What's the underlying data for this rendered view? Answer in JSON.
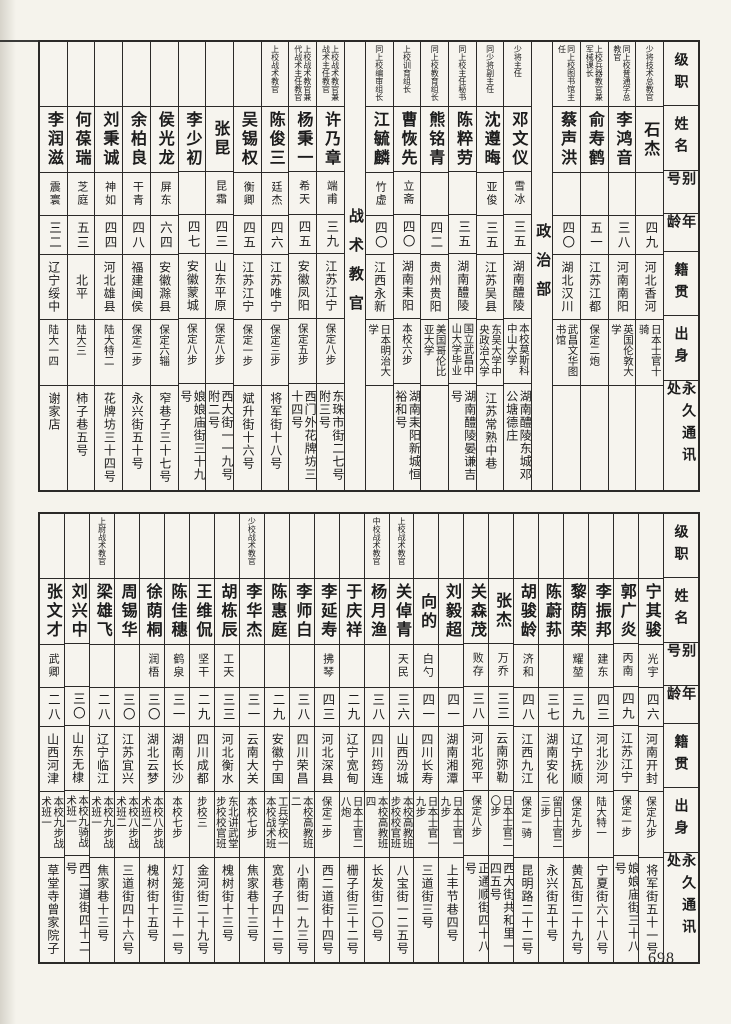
{
  "page": {
    "number": "698"
  },
  "field_labels": [
    "级职",
    "姓名",
    "别号",
    "年龄",
    "籍贯",
    "出身",
    "永久通讯处"
  ],
  "tables": [
    {
      "name": "top",
      "columns": [
        {
          "type": "header"
        },
        {
          "type": "person",
          "rank": "少将技术总教官",
          "name": "石杰",
          "alias": "",
          "age": "四九",
          "native": "河北香河",
          "background": "日本士官十骑",
          "address": ""
        },
        {
          "type": "person",
          "rank": "同上校普通学总教官",
          "name": "李鸿音",
          "alias": "",
          "age": "三八",
          "native": "河南南阳",
          "background": "英国伦敦大学",
          "address": ""
        },
        {
          "type": "person",
          "rank": "上校兵器教官兼军械课长",
          "name": "俞寿鹤",
          "alias": "",
          "age": "五一",
          "native": "江苏江都",
          "background": "保定二炮",
          "address": ""
        },
        {
          "type": "person",
          "rank": "同上校图书馆主任",
          "name": "蔡声洪",
          "alias": "",
          "age": "四〇",
          "native": "湖北汉川",
          "background": "武昌文华图书馆",
          "address": ""
        },
        {
          "type": "group",
          "title": "政治部"
        },
        {
          "type": "person",
          "rank": "少将主任",
          "name": "邓文仪",
          "alias": "雪冰",
          "age": "三五",
          "native": "湖南醴陵",
          "background": "本校莫斯科中山大学",
          "address": "湖南醴陵东城邓公塘德庄"
        },
        {
          "type": "person",
          "rank": "同少将副主任",
          "name": "沈遵晦",
          "alias": "亚俊",
          "age": "三五",
          "native": "江苏吴县",
          "background": "东吴大学中央政治大学",
          "address": "江苏常熟中巷"
        },
        {
          "type": "person",
          "rank": "同上校主任秘书",
          "name": "陈粹劳",
          "alias": "",
          "age": "三五",
          "native": "湖南醴陵",
          "background": "国立武昌中山大学毕业",
          "address": "湖南醴陵晏谦吉号"
        },
        {
          "type": "person",
          "rank": "同上校教育组长",
          "name": "熊铭青",
          "alias": "",
          "age": "四二",
          "native": "贵州贵阳",
          "background": "美国哥伦比亚大学",
          "address": ""
        },
        {
          "type": "person",
          "rank": "上校训育组长",
          "name": "曹恢先",
          "alias": "立斋",
          "age": "四〇",
          "native": "湖南耒阳",
          "background": "本校六步",
          "address": "湖南耒阳新城恒裕和号"
        },
        {
          "type": "person",
          "rank": "同上校编审组长",
          "name": "江毓麟",
          "alias": "竹虚",
          "age": "四〇",
          "native": "江西永新",
          "background": "日本明治大学",
          "address": ""
        },
        {
          "type": "group",
          "title": "战术教官"
        },
        {
          "type": "person",
          "rank": "上校战术教官兼战术主任教官",
          "name": "许乃章",
          "alias": "端甫",
          "age": "三九",
          "native": "江苏江宁",
          "background": "保定八步",
          "address": "东珠市街二七号附三号"
        },
        {
          "type": "person",
          "rank": "上校战术教官兼代战术主任教官",
          "name": "杨秉一",
          "alias": "希天",
          "age": "四五",
          "native": "安徽凤阳",
          "background": "保定五步",
          "address": "西门外花牌坊三十四号"
        },
        {
          "type": "person",
          "rank": "上校战术教官",
          "name": "陈俊三",
          "alias": "廷杰",
          "age": "四六",
          "native": "江苏唯宁",
          "background": "保定三步",
          "address": "将军街十八号"
        },
        {
          "type": "person",
          "rank": "",
          "name": "吴锡权",
          "alias": "衡卿",
          "age": "四五",
          "native": "江苏江宁",
          "background": "保定一步",
          "address": "斌升街十六号"
        },
        {
          "type": "person",
          "rank": "",
          "name": "张昆",
          "alias": "昆霜",
          "age": "四三",
          "native": "山东平原",
          "background": "保定八步",
          "address": "西大街一一九号附二号"
        },
        {
          "type": "person",
          "rank": "",
          "name": "李少初",
          "alias": "",
          "age": "四七",
          "native": "安徽蒙城",
          "background": "保定八步",
          "address": "娘娘庙街三十九号"
        },
        {
          "type": "person",
          "rank": "",
          "name": "侯光龙",
          "alias": "屏东",
          "age": "六四",
          "native": "安徽滁县",
          "background": "保定六辎",
          "address": "窄巷子三十七号"
        },
        {
          "type": "person",
          "rank": "",
          "name": "余柏良",
          "alias": "干青",
          "age": "四八",
          "native": "福建闽侯",
          "background": "保定二步",
          "address": "永兴街五十号"
        },
        {
          "type": "person",
          "rank": "",
          "name": "刘秉诚",
          "alias": "神如",
          "age": "四四",
          "native": "河北雄县",
          "background": "陆大特二",
          "address": "花牌坊三十四号"
        },
        {
          "type": "person",
          "rank": "",
          "name": "何葆瑞",
          "alias": "芝庭",
          "age": "五三",
          "native": "北平",
          "background": "陆大三",
          "address": "柿子巷五号"
        },
        {
          "type": "person",
          "rank": "",
          "name": "李润滋",
          "alias": "震寰",
          "age": "三二",
          "native": "辽宁绥中",
          "background": "陆大一四",
          "address": "谢家店"
        }
      ]
    },
    {
      "name": "bottom",
      "columns": [
        {
          "type": "header"
        },
        {
          "type": "person",
          "rank": "",
          "name": "宁其骏",
          "alias": "光宇",
          "age": "四六",
          "native": "河南开封",
          "background": "保定九步",
          "address": "将军街五十一号"
        },
        {
          "type": "person",
          "rank": "",
          "name": "郭广炎",
          "alias": "丙南",
          "age": "四九",
          "native": "江苏江宁",
          "background": "保定一步",
          "address": "娘娘庙街三十八号"
        },
        {
          "type": "person",
          "rank": "",
          "name": "李振邦",
          "alias": "建东",
          "age": "四三",
          "native": "河北沙河",
          "background": "陆大特一",
          "address": "宁夏街六十八号"
        },
        {
          "type": "person",
          "rank": "",
          "name": "黎荫荣",
          "alias": "耀堃",
          "age": "三九",
          "native": "辽宁抚顺",
          "background": "保定九步",
          "address": "黄瓦街二十九号"
        },
        {
          "type": "person",
          "rank": "",
          "name": "陈蔚荪",
          "alias": "",
          "age": "三七",
          "native": "湖南安化",
          "background": "留日士官二三步",
          "address": "永兴街五十号"
        },
        {
          "type": "person",
          "rank": "",
          "name": "胡骏龄",
          "alias": "济和",
          "age": "四八",
          "native": "江西九江",
          "background": "保定一骑",
          "address": "昆明路二十二号"
        },
        {
          "type": "person",
          "rank": "",
          "name": "张杰",
          "alias": "万乔",
          "age": "三三",
          "native": "云南弥勒",
          "background": "日本士官二〇步",
          "address": "西大街共和里一四五号"
        },
        {
          "type": "person",
          "rank": "",
          "name": "关森茂",
          "alias": "败存",
          "age": "三八",
          "native": "河北宛平",
          "background": "保定八步",
          "address": "正通顺街四十八号"
        },
        {
          "type": "person",
          "rank": "",
          "name": "刘毅超",
          "alias": "",
          "age": "四一",
          "native": "湖南湘潭",
          "background": "日本士官一九步",
          "address": "上丰节巷四号"
        },
        {
          "type": "person",
          "rank": "",
          "name": "向的",
          "alias": "白勺",
          "age": "四一",
          "native": "四川长寿",
          "background": "日本士官一九步",
          "address": "三道街三号"
        },
        {
          "type": "person",
          "rank": "上校战术教官",
          "name": "关倬青",
          "alias": "天民",
          "age": "三六",
          "native": "山西汾城",
          "background": "本校高教班步校校官班",
          "address": "八宝街一二五号"
        },
        {
          "type": "person",
          "rank": "中校战术教官",
          "name": "杨月渔",
          "alias": "",
          "age": "三八",
          "native": "四川筠连",
          "background": "本校高教班四",
          "address": "长发街二〇号"
        },
        {
          "type": "person",
          "rank": "",
          "name": "于庆祥",
          "alias": "",
          "age": "二九",
          "native": "辽宁宽甸",
          "background": "日本士官二八炮",
          "address": "栅子街三十二号"
        },
        {
          "type": "person",
          "rank": "",
          "name": "李延寿",
          "alias": "拂琴",
          "age": "四三",
          "native": "河北深县",
          "background": "保定二步",
          "address": "西二道街十四号"
        },
        {
          "type": "person",
          "rank": "",
          "name": "李师白",
          "alias": "",
          "age": "三八",
          "native": "四川荣昌",
          "background": "本校高教班二",
          "address": "小南街一九三号"
        },
        {
          "type": "person",
          "rank": "",
          "name": "陈惠庭",
          "alias": "",
          "age": "二九",
          "native": "安徽宁国",
          "background": "工兵学校一本校战术班",
          "address": "宽巷子四十二号"
        },
        {
          "type": "person",
          "rank": "少校战术教官",
          "name": "李华杰",
          "alias": "",
          "age": "三一",
          "native": "云南大关",
          "background": "本校七步",
          "address": "焦家巷十三号"
        },
        {
          "type": "person",
          "rank": "",
          "name": "胡栋辰",
          "alias": "工天",
          "age": "三三",
          "native": "河北衡水",
          "background": "东北讲武堂步校校官班",
          "address": "槐树街十三号"
        },
        {
          "type": "person",
          "rank": "",
          "name": "王维侃",
          "alias": "坚干",
          "age": "二九",
          "native": "四川成都",
          "background": "步校三",
          "address": "金河街二十九号"
        },
        {
          "type": "person",
          "rank": "",
          "name": "陈佳穗",
          "alias": "鹤泉",
          "age": "三一",
          "native": "湖南长沙",
          "background": "本校七步",
          "address": "灯笼街三十一号"
        },
        {
          "type": "person",
          "rank": "",
          "name": "徐荫桐",
          "alias": "润梧",
          "age": "三〇",
          "native": "湖北云梦",
          "background": "本校八步战术班二",
          "address": "槐树街十五号"
        },
        {
          "type": "person",
          "rank": "",
          "name": "周锡华",
          "alias": "",
          "age": "三〇",
          "native": "江苏宜兴",
          "background": "本校八步战术班二",
          "address": "三道街四十六号"
        },
        {
          "type": "person",
          "rank": "上尉战术教官",
          "name": "梁雄飞",
          "alias": "",
          "age": "二八",
          "native": "辽宁临江",
          "background": "本校九步战术班一",
          "address": "焦家巷十三号"
        },
        {
          "type": "person",
          "rank": "",
          "name": "刘兴中",
          "alias": "",
          "age": "三〇",
          "native": "山东无棣",
          "background": "本校九骑战术班一",
          "address": "西二道街四十二号"
        },
        {
          "type": "person",
          "rank": "",
          "name": "张文才",
          "alias": "武卿",
          "age": "二八",
          "native": "山西河津",
          "background": "本校九步战术班一",
          "address": "草堂寺曾家院子"
        }
      ]
    }
  ]
}
